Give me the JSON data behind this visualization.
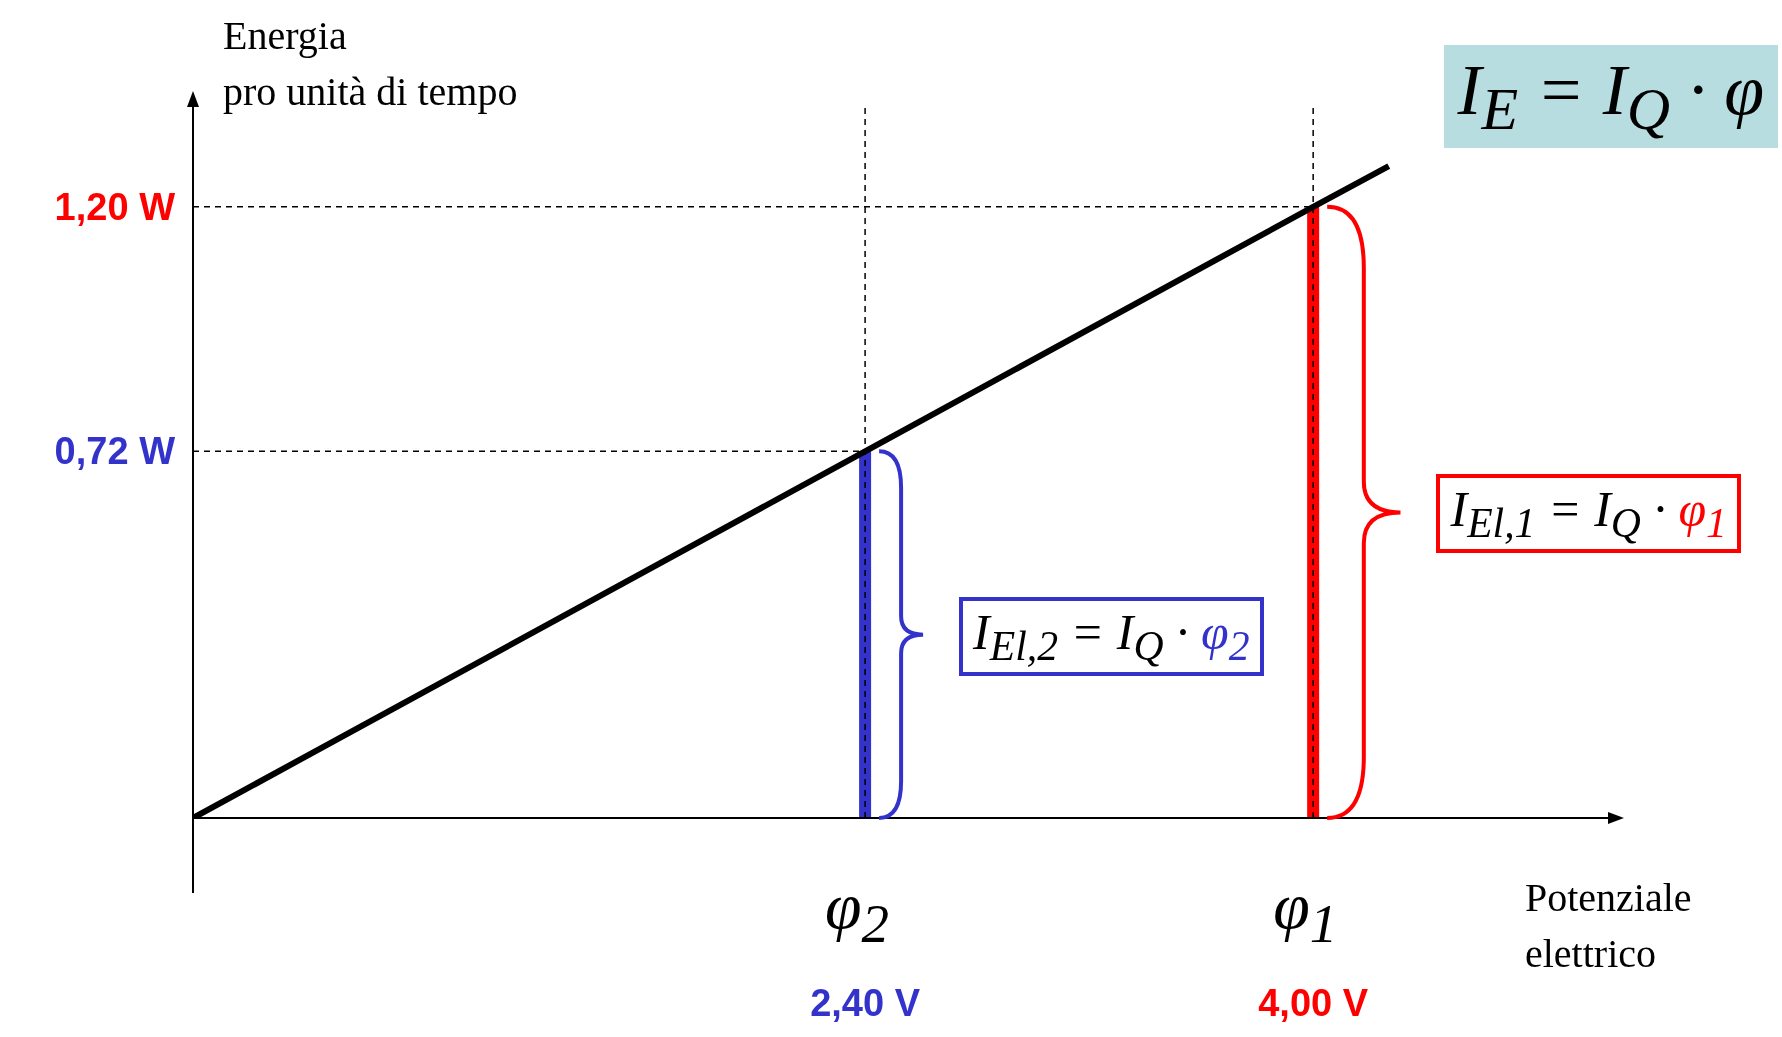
{
  "chart_data": {
    "type": "line",
    "xlabel": "Potenziale elettrico",
    "ylabel": "Energia pro unità di tempo",
    "xlim": [
      0,
      5.06
    ],
    "ylim": [
      0,
      1.4
    ],
    "xticks": [
      {
        "value": 2.4,
        "label": "2,40 V"
      },
      {
        "value": 4,
        "label": "4,00 V"
      }
    ],
    "yticks": [
      {
        "value": 0.72,
        "label": "0,72 W"
      },
      {
        "value": 1.2,
        "label": "1,20 W"
      }
    ],
    "series": [
      {
        "type": "line",
        "color": "#000000",
        "x": [
          0,
          2.4,
          4,
          4.27
        ],
        "values": [
          0,
          0.72,
          1.2,
          1.28
        ]
      },
      {
        "type": "bar",
        "color": "#3333cc",
        "x": [
          2.4
        ],
        "values": [
          0.72
        ]
      },
      {
        "type": "bar",
        "color": "#ff0000",
        "x": [
          4
        ],
        "values": [
          1.2
        ]
      }
    ],
    "ref_lines": [
      {
        "axis": "x",
        "value": 2.4,
        "line_style": "dashed",
        "color": "#000000"
      },
      {
        "axis": "x",
        "value": 4,
        "line_style": "dashed",
        "color": "#000000"
      },
      {
        "axis": "y",
        "value": 0.72,
        "line_style": "dashed",
        "color": "#000000"
      },
      {
        "axis": "y",
        "value": 1.2,
        "line_style": "dashed",
        "color": "#000000"
      }
    ],
    "annotations": [
      "I$_{E}$ = I$_{Q}$ · φ",
      "I$_{El,1}$ = I$_{Q}$ · φ$_{1}$",
      "I$_{El,2}$ = I$_{Q}$ · φ$_{2}$",
      {
        "text": "φ$_{2}$",
        "x": 2.4,
        "y": 0
      },
      {
        "text": "φ$_{1}$",
        "x": 4,
        "y": 0
      }
    ],
    "marker": "none"
  }
}
